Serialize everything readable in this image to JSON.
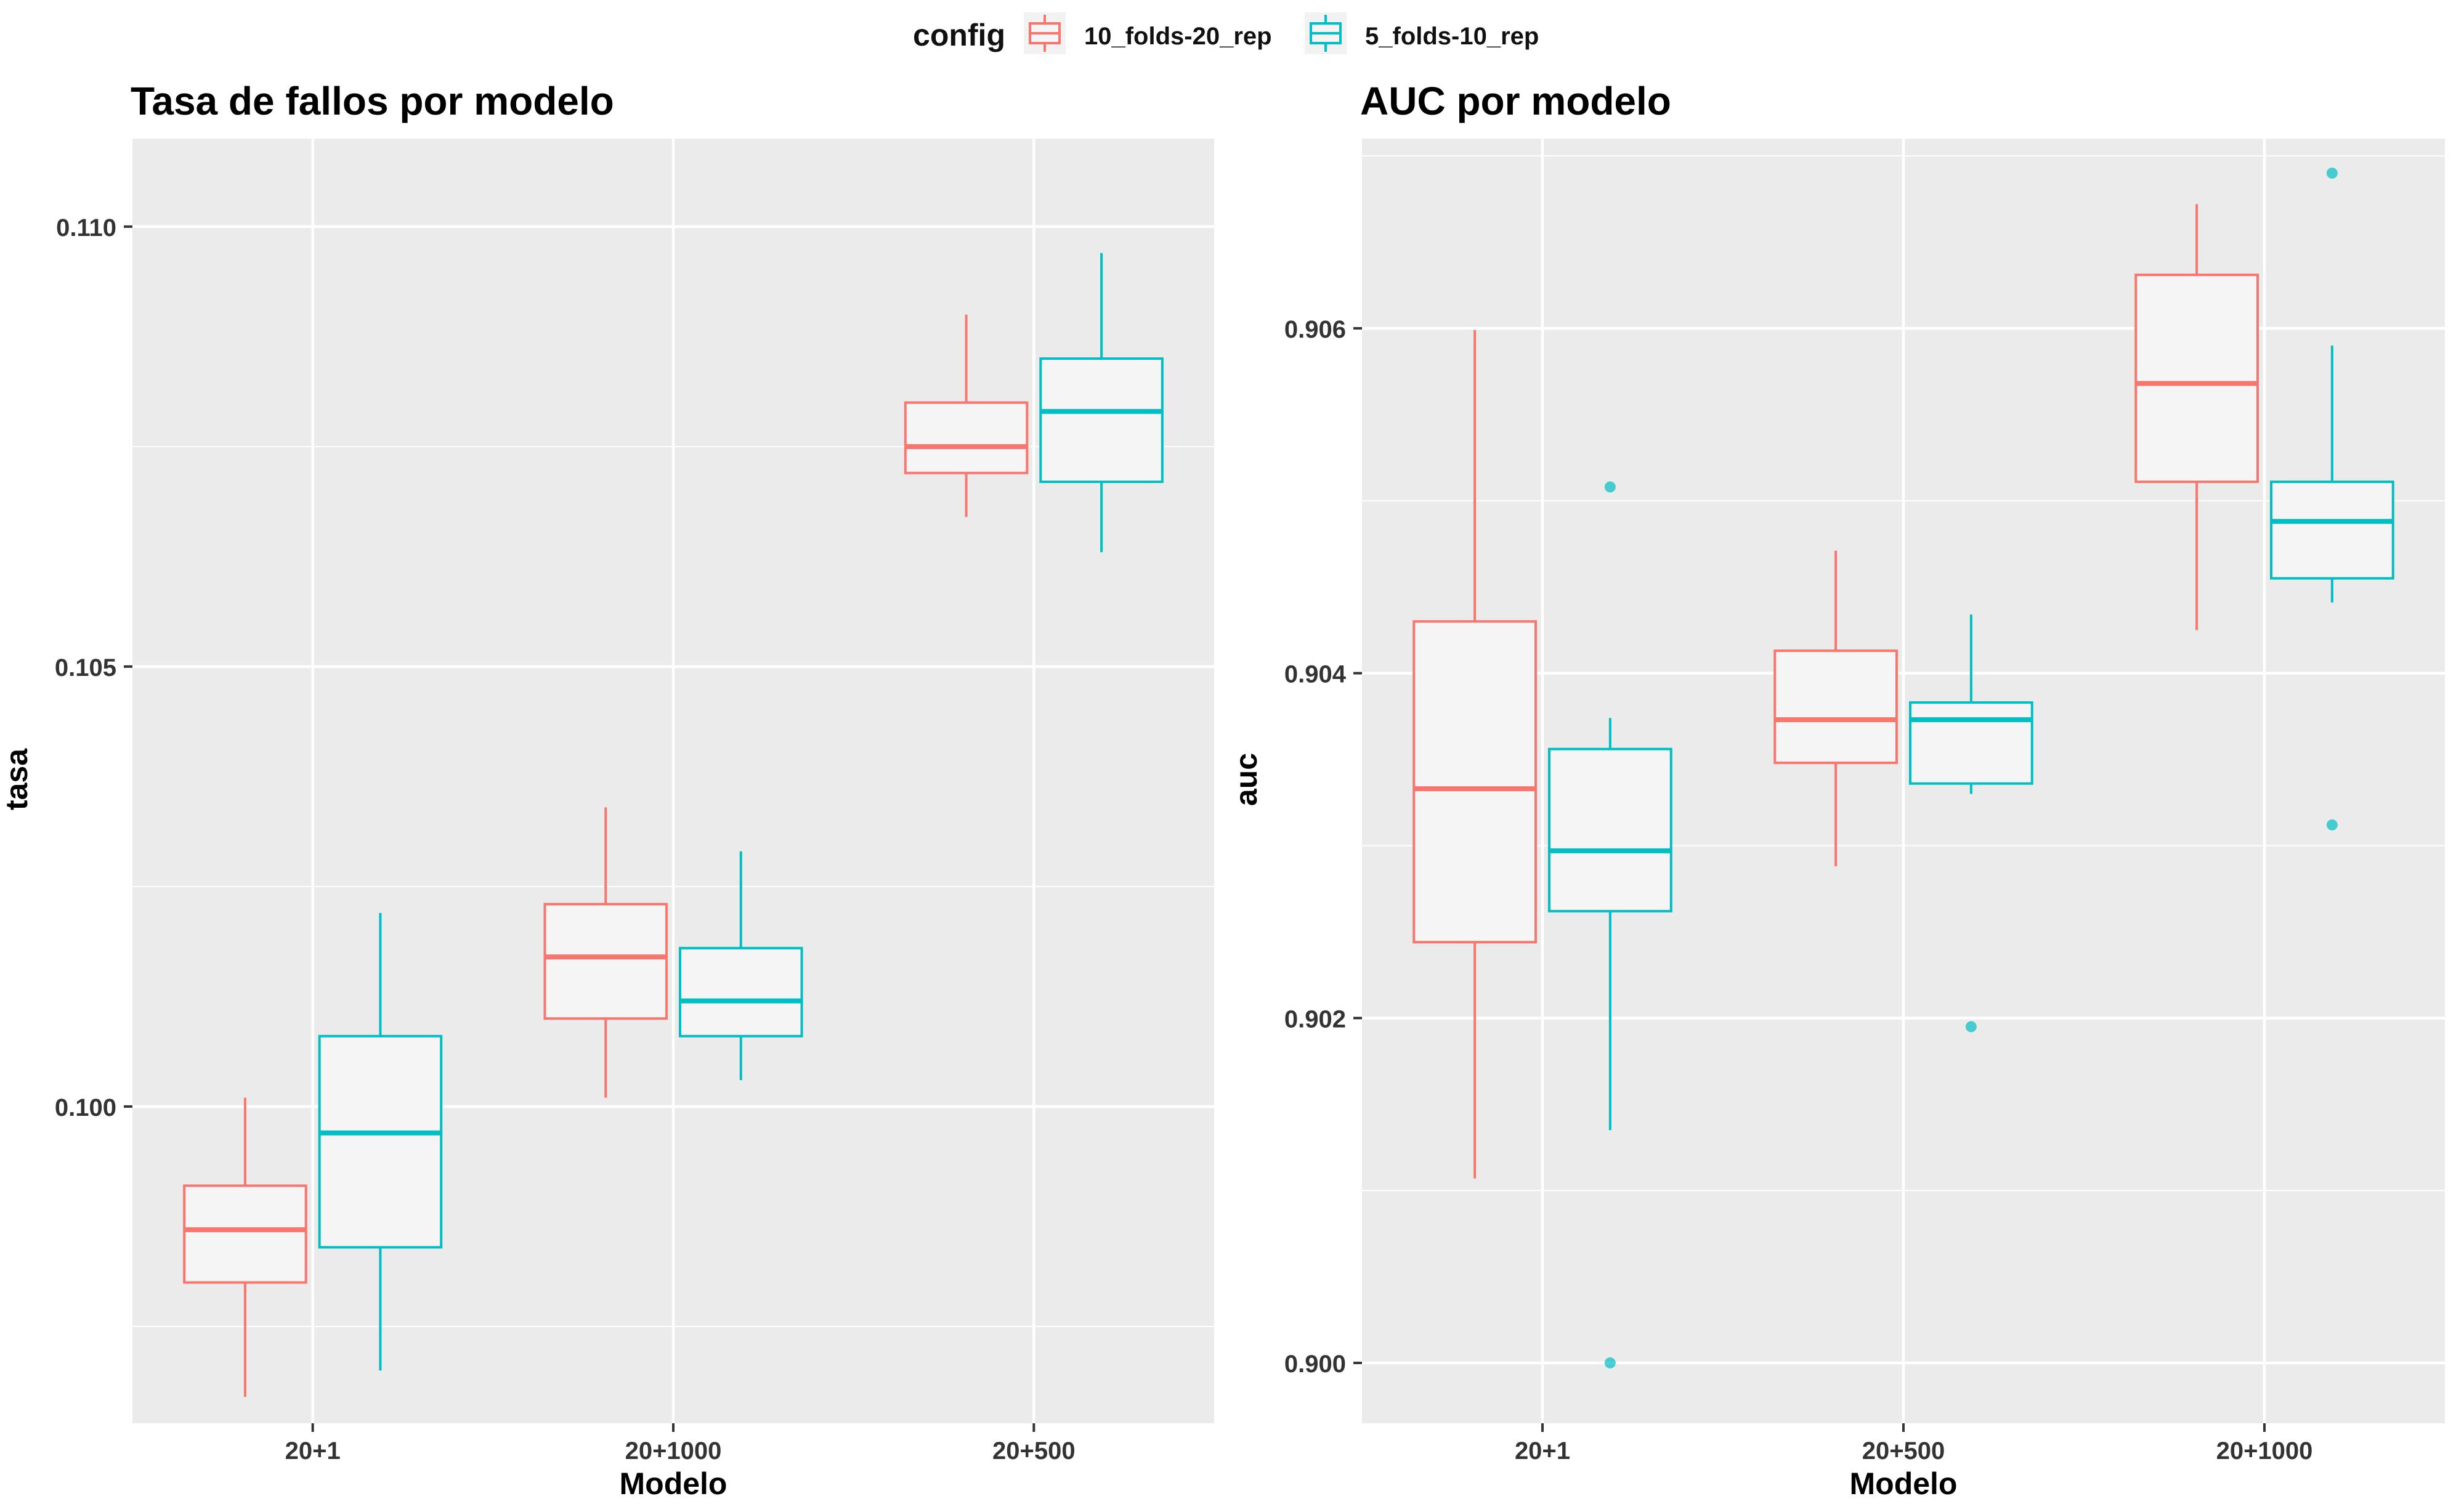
{
  "legend": {
    "title": "config",
    "items": [
      {
        "label": "10_folds-20_rep",
        "color": "#F8766D"
      },
      {
        "label": "5_folds-10_rep",
        "color": "#00BFC4"
      }
    ]
  },
  "chart_data": [
    {
      "type": "boxplot",
      "title": "Tasa de fallos por modelo",
      "xlabel": "Modelo",
      "ylabel": "tasa",
      "ylim": [
        0.0964,
        0.111
      ],
      "yticks": [
        0.1,
        0.105,
        0.11
      ],
      "ytick_labels": [
        "0.100",
        "0.105",
        "0.110"
      ],
      "categories": [
        "20+1",
        "20+1000",
        "20+500"
      ],
      "background": "#EBEBEB",
      "grid": true,
      "series": [
        {
          "name": "10_folds-20_rep",
          "color": "#F8766D",
          "boxes": [
            {
              "category": "20+1",
              "min": 0.0967,
              "q1": 0.098,
              "median": 0.0986,
              "q3": 0.0991,
              "max": 0.1001,
              "outliers": []
            },
            {
              "category": "20+1000",
              "min": 0.1001,
              "q1": 0.101,
              "median": 0.1017,
              "q3": 0.1023,
              "max": 0.1034,
              "outliers": []
            },
            {
              "category": "20+500",
              "min": 0.1067,
              "q1": 0.1072,
              "median": 0.1075,
              "q3": 0.108,
              "max": 0.109,
              "outliers": []
            }
          ]
        },
        {
          "name": "5_folds-10_rep",
          "color": "#00BFC4",
          "boxes": [
            {
              "category": "20+1",
              "min": 0.097,
              "q1": 0.0984,
              "median": 0.0997,
              "q3": 0.1008,
              "max": 0.1022,
              "outliers": []
            },
            {
              "category": "20+1000",
              "min": 0.1003,
              "q1": 0.1008,
              "median": 0.1012,
              "q3": 0.1018,
              "max": 0.1029,
              "outliers": []
            },
            {
              "category": "20+500",
              "min": 0.1063,
              "q1": 0.1071,
              "median": 0.1079,
              "q3": 0.1085,
              "max": 0.1097,
              "outliers": []
            }
          ]
        }
      ]
    },
    {
      "type": "boxplot",
      "title": "AUC por modelo",
      "xlabel": "Modelo",
      "ylabel": "auc",
      "ylim": [
        0.89965,
        0.9071
      ],
      "yticks": [
        0.9,
        0.902,
        0.904,
        0.906
      ],
      "ytick_labels": [
        "0.900",
        "0.902",
        "0.904",
        "0.906"
      ],
      "categories": [
        "20+1",
        "20+500",
        "20+1000"
      ],
      "background": "#EBEBEB",
      "grid": true,
      "series": [
        {
          "name": "10_folds-20_rep",
          "color": "#F8766D",
          "boxes": [
            {
              "category": "20+1",
              "min": 0.90107,
              "q1": 0.90244,
              "median": 0.90333,
              "q3": 0.9043,
              "max": 0.90599,
              "outliers": []
            },
            {
              "category": "20+500",
              "min": 0.90288,
              "q1": 0.90348,
              "median": 0.90373,
              "q3": 0.90413,
              "max": 0.90471,
              "outliers": []
            },
            {
              "category": "20+1000",
              "min": 0.90425,
              "q1": 0.90511,
              "median": 0.90568,
              "q3": 0.90631,
              "max": 0.90672,
              "outliers": []
            }
          ]
        },
        {
          "name": "5_folds-10_rep",
          "color": "#00BFC4",
          "boxes": [
            {
              "category": "20+1",
              "min": 0.90135,
              "q1": 0.90262,
              "median": 0.90297,
              "q3": 0.90356,
              "max": 0.90374,
              "outliers": [
                0.90508,
                0.9
              ]
            },
            {
              "category": "20+500",
              "min": 0.9033,
              "q1": 0.90336,
              "median": 0.90373,
              "q3": 0.90383,
              "max": 0.90434,
              "outliers": [
                0.90195
              ]
            },
            {
              "category": "20+1000",
              "min": 0.90441,
              "q1": 0.90455,
              "median": 0.90488,
              "q3": 0.90511,
              "max": 0.9059,
              "outliers": [
                0.9069,
                0.90312
              ]
            }
          ]
        }
      ]
    }
  ]
}
